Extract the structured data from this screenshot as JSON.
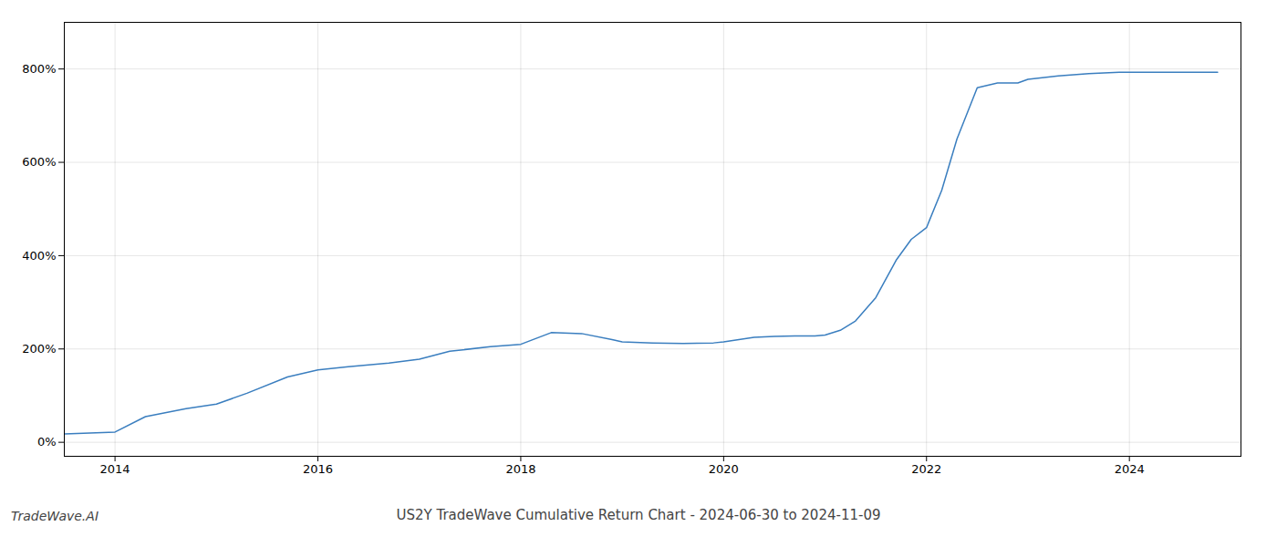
{
  "chart_data": {
    "type": "line",
    "title": "US2Y TradeWave Cumulative Return Chart - 2024-06-30 to 2024-11-09",
    "annotations": [
      "TradeWave.AI"
    ],
    "x": [
      2013.5,
      2014.0,
      2014.3,
      2014.7,
      2015.0,
      2015.3,
      2015.7,
      2016.0,
      2016.3,
      2016.7,
      2017.0,
      2017.3,
      2017.7,
      2018.0,
      2018.3,
      2018.6,
      2018.9,
      2019.0,
      2019.3,
      2019.6,
      2019.9,
      2020.0,
      2020.15,
      2020.3,
      2020.5,
      2020.7,
      2020.9,
      2021.0,
      2021.15,
      2021.3,
      2021.5,
      2021.7,
      2021.85,
      2022.0,
      2022.15,
      2022.3,
      2022.5,
      2022.7,
      2022.9,
      2023.0,
      2023.3,
      2023.6,
      2023.9,
      2024.0,
      2024.3,
      2024.6,
      2024.87
    ],
    "values": [
      18,
      22,
      55,
      72,
      82,
      105,
      140,
      155,
      162,
      170,
      178,
      195,
      205,
      210,
      235,
      233,
      220,
      215,
      213,
      212,
      213,
      215,
      220,
      225,
      227,
      228,
      228,
      230,
      240,
      260,
      310,
      390,
      435,
      460,
      540,
      650,
      760,
      770,
      770,
      778,
      785,
      790,
      793,
      793,
      793,
      793,
      793
    ],
    "color": "#3a7ebf",
    "xlim": [
      2013.5,
      2025.1
    ],
    "xticks": [
      2014,
      2016,
      2018,
      2020,
      2022,
      2024
    ],
    "ylim": [
      -30,
      900
    ],
    "yticks": [
      {
        "value": 0,
        "label": "0%"
      },
      {
        "value": 200,
        "label": "200%"
      },
      {
        "value": 400,
        "label": "400%"
      },
      {
        "value": 600,
        "label": "600%"
      },
      {
        "value": 800,
        "label": "800%"
      }
    ],
    "grid": true
  }
}
